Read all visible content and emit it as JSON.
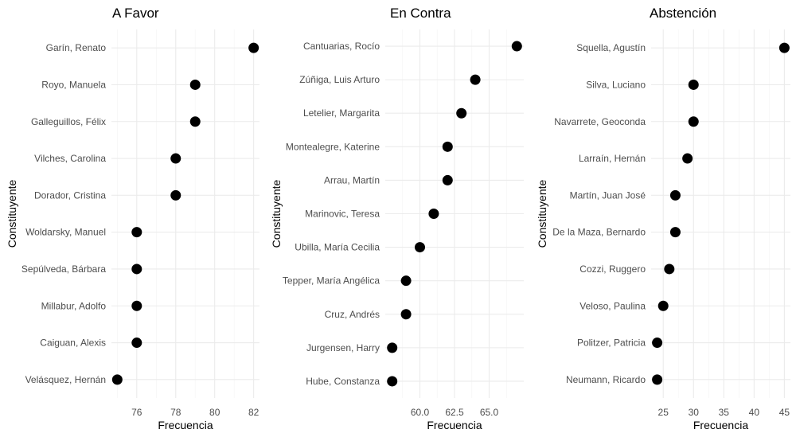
{
  "chart_data": [
    {
      "type": "scatter",
      "title": "A Favor",
      "xlabel": "Frecuencia",
      "ylabel": "Constituyente",
      "xlim": [
        74.7,
        82.3
      ],
      "xticks": [
        76,
        78,
        80,
        82
      ],
      "xtick_labels": [
        "76",
        "78",
        "80",
        "82"
      ],
      "categories": [
        "Garín, Renato",
        "Royo, Manuela",
        "Galleguillos, Félix",
        "Vilches, Carolina",
        "Dorador, Cristina",
        "Woldarsky, Manuel",
        "Sepúlveda, Bárbara",
        "Millabur, Adolfo",
        "Caiguan, Alexis",
        "Velásquez, Hernán"
      ],
      "values": [
        82,
        79,
        79,
        78,
        78,
        76,
        76,
        76,
        76,
        75
      ]
    },
    {
      "type": "scatter",
      "title": "En Contra",
      "xlabel": "Frecuencia",
      "ylabel": "Constituyente",
      "xlim": [
        57.5,
        67.5
      ],
      "xticks": [
        60,
        62.5,
        65
      ],
      "xtick_labels": [
        "60.0",
        "62.5",
        "65.0"
      ],
      "categories": [
        "Cantuarias, Rocío",
        "Zúñiga, Luis Arturo",
        "Letelier, Margarita",
        "Montealegre, Katerine",
        "Arrau, Martín",
        "Marinovic, Teresa",
        "Ubilla, María Cecilia",
        "Tepper, María Angélica",
        "Cruz, Andrés",
        "Jurgensen, Harry",
        "Hube, Constanza"
      ],
      "values": [
        67,
        64,
        63,
        62,
        62,
        61,
        60,
        59,
        59,
        58,
        58
      ]
    },
    {
      "type": "scatter",
      "title": "Abstención",
      "xlabel": "Frecuencia",
      "ylabel": "Constituyente",
      "xlim": [
        23,
        46
      ],
      "xticks": [
        25,
        30,
        35,
        40,
        45
      ],
      "xtick_labels": [
        "25",
        "30",
        "35",
        "40",
        "45"
      ],
      "categories": [
        "Squella, Agustín",
        "Silva, Luciano",
        "Navarrete, Geoconda",
        "Larraín, Hernán",
        "Martín, Juan José",
        "De la Maza, Bernardo",
        "Cozzi, Ruggero",
        "Veloso, Paulina",
        "Politzer, Patricia",
        "Neumann, Ricardo"
      ],
      "values": [
        45,
        30,
        30,
        29,
        27,
        27,
        26,
        25,
        24,
        24
      ]
    }
  ]
}
